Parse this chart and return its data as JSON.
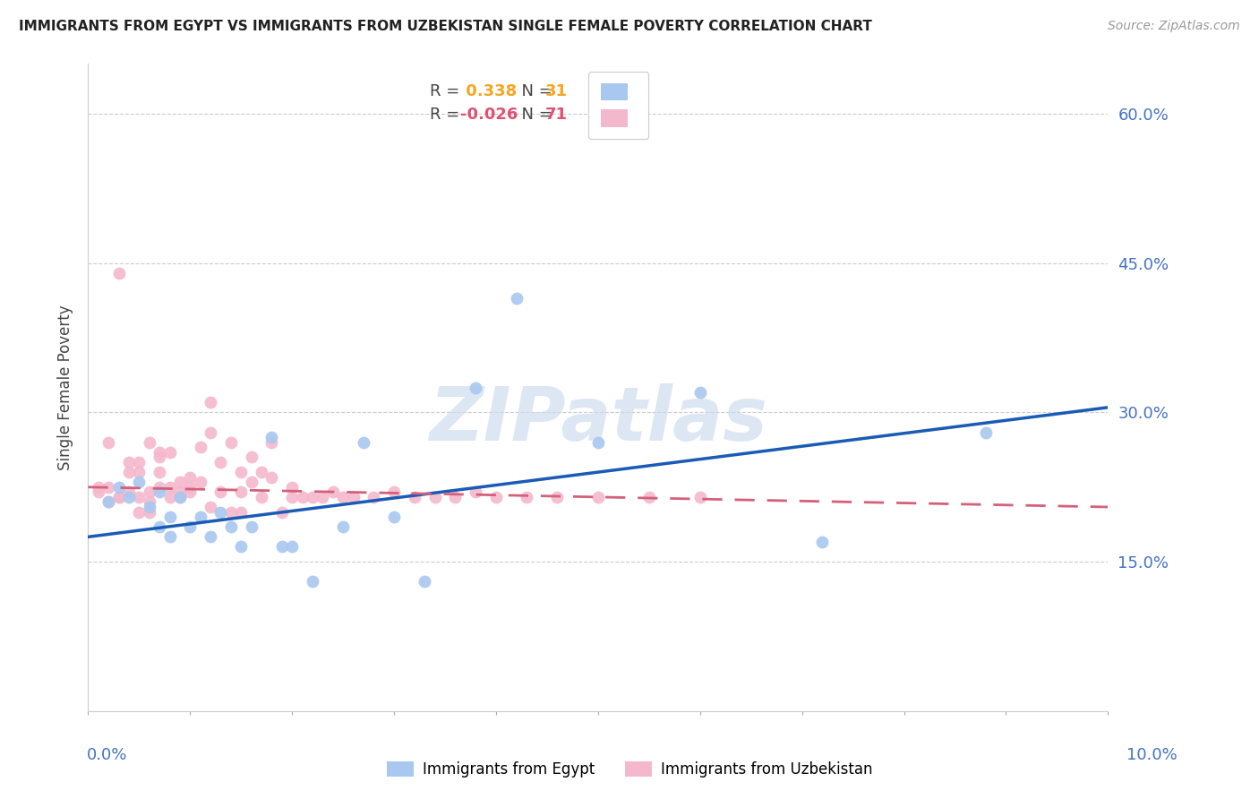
{
  "title": "IMMIGRANTS FROM EGYPT VS IMMIGRANTS FROM UZBEKISTAN SINGLE FEMALE POVERTY CORRELATION CHART",
  "source": "Source: ZipAtlas.com",
  "ylabel": "Single Female Poverty",
  "y_ticks": [
    0.0,
    0.15,
    0.3,
    0.45,
    0.6
  ],
  "y_tick_labels": [
    "",
    "15.0%",
    "30.0%",
    "45.0%",
    "60.0%"
  ],
  "x_range": [
    0.0,
    0.1
  ],
  "y_range": [
    0.0,
    0.65
  ],
  "egypt_R": 0.338,
  "egypt_N": 31,
  "uzbek_R": -0.026,
  "uzbek_N": 71,
  "egypt_color": "#a8c8f0",
  "uzbek_color": "#f4b8cc",
  "egypt_line_color": "#1a5bb5",
  "uzbek_line_color": "#d4607a",
  "watermark": "ZIPatlas",
  "egypt_line_x0": 0.0,
  "egypt_line_y0": 0.175,
  "egypt_line_x1": 0.1,
  "egypt_line_y1": 0.305,
  "uzbek_line_x0": 0.0,
  "uzbek_line_y0": 0.225,
  "uzbek_line_x1": 0.1,
  "uzbek_line_y1": 0.205,
  "egypt_x": [
    0.002,
    0.003,
    0.004,
    0.005,
    0.006,
    0.007,
    0.007,
    0.008,
    0.008,
    0.009,
    0.01,
    0.011,
    0.012,
    0.013,
    0.014,
    0.015,
    0.016,
    0.018,
    0.019,
    0.02,
    0.022,
    0.025,
    0.027,
    0.03,
    0.033,
    0.038,
    0.042,
    0.05,
    0.06,
    0.072,
    0.088
  ],
  "egypt_y": [
    0.21,
    0.225,
    0.215,
    0.23,
    0.205,
    0.22,
    0.185,
    0.195,
    0.175,
    0.215,
    0.185,
    0.195,
    0.175,
    0.2,
    0.185,
    0.165,
    0.185,
    0.275,
    0.165,
    0.165,
    0.13,
    0.185,
    0.27,
    0.195,
    0.13,
    0.325,
    0.415,
    0.27,
    0.32,
    0.17,
    0.28
  ],
  "uzbek_x": [
    0.001,
    0.001,
    0.002,
    0.002,
    0.002,
    0.003,
    0.003,
    0.003,
    0.004,
    0.004,
    0.004,
    0.005,
    0.005,
    0.005,
    0.005,
    0.006,
    0.006,
    0.006,
    0.006,
    0.007,
    0.007,
    0.007,
    0.007,
    0.008,
    0.008,
    0.008,
    0.009,
    0.009,
    0.009,
    0.01,
    0.01,
    0.01,
    0.011,
    0.011,
    0.012,
    0.012,
    0.012,
    0.013,
    0.013,
    0.014,
    0.014,
    0.015,
    0.015,
    0.015,
    0.016,
    0.016,
    0.017,
    0.017,
    0.018,
    0.018,
    0.019,
    0.02,
    0.02,
    0.021,
    0.022,
    0.023,
    0.024,
    0.025,
    0.026,
    0.028,
    0.03,
    0.032,
    0.034,
    0.036,
    0.038,
    0.04,
    0.043,
    0.046,
    0.05,
    0.055,
    0.06
  ],
  "uzbek_y": [
    0.225,
    0.22,
    0.27,
    0.21,
    0.225,
    0.44,
    0.215,
    0.215,
    0.25,
    0.24,
    0.22,
    0.25,
    0.24,
    0.215,
    0.2,
    0.21,
    0.2,
    0.27,
    0.22,
    0.24,
    0.26,
    0.255,
    0.225,
    0.26,
    0.215,
    0.225,
    0.215,
    0.22,
    0.23,
    0.235,
    0.225,
    0.22,
    0.265,
    0.23,
    0.205,
    0.28,
    0.31,
    0.25,
    0.22,
    0.27,
    0.2,
    0.24,
    0.22,
    0.2,
    0.255,
    0.23,
    0.24,
    0.215,
    0.27,
    0.235,
    0.2,
    0.225,
    0.215,
    0.215,
    0.215,
    0.215,
    0.22,
    0.215,
    0.215,
    0.215,
    0.22,
    0.215,
    0.215,
    0.215,
    0.22,
    0.215,
    0.215,
    0.215,
    0.215,
    0.215,
    0.215
  ]
}
